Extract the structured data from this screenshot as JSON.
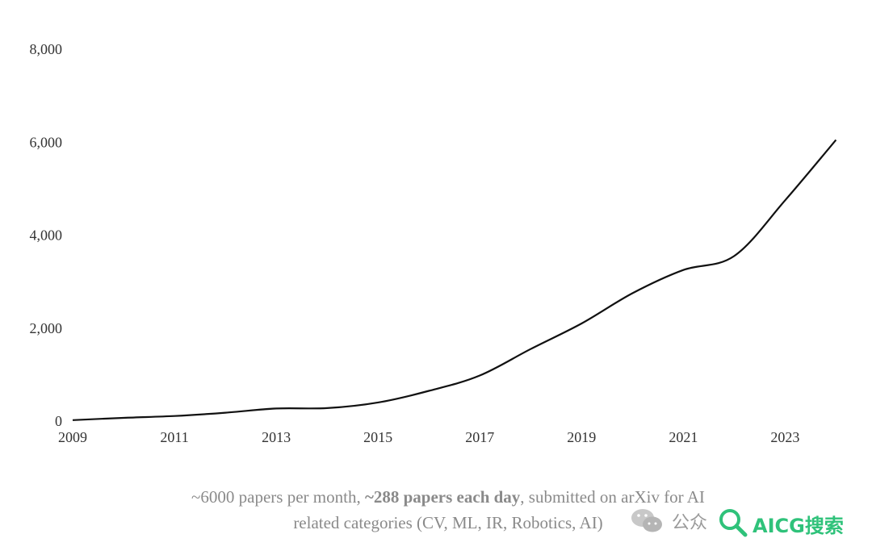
{
  "chart_data": {
    "type": "line",
    "title": "",
    "xlabel": "",
    "ylabel": "",
    "x_ticks": [
      "2009",
      "2011",
      "2013",
      "2015",
      "2017",
      "2019",
      "2021",
      "2023"
    ],
    "y_ticks": [
      "0",
      "2,000",
      "4,000",
      "6,000",
      "8,000"
    ],
    "xlim": [
      2009,
      2024.2
    ],
    "ylim": [
      0,
      8000
    ],
    "grid": false,
    "series": [
      {
        "x": [
          2009,
          2010,
          2011,
          2012,
          2013,
          2014,
          2015,
          2016,
          2017,
          2018,
          2019,
          2020,
          2021,
          2022,
          2023,
          2024
        ],
        "values": [
          20,
          70,
          110,
          180,
          270,
          280,
          400,
          650,
          980,
          1550,
          2100,
          2750,
          3250,
          3550,
          4750,
          6050
        ]
      }
    ],
    "line_color": "#111111"
  },
  "caption": {
    "line1_pre": "~6000 papers per month, ",
    "line1_bold": "~288 papers each day",
    "line1_post": ", submitted on arXiv for AI",
    "line2": "related categories (CV, ML, IR, Robotics, AI)"
  },
  "watermark": {
    "icon": "wechat-icon",
    "text": "公众",
    "search_icon": "magnifier-icon",
    "brand": "AICG搜索",
    "brand_color": "#2fc27a"
  }
}
